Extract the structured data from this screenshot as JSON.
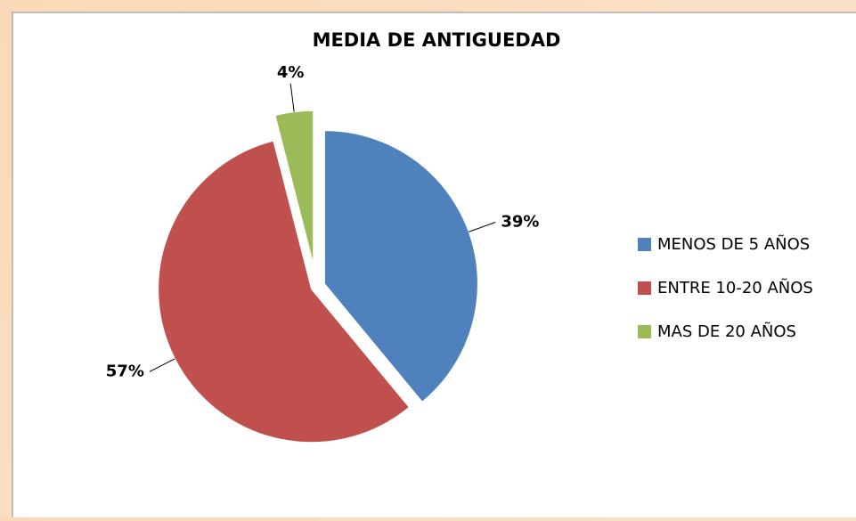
{
  "chart_data": {
    "type": "pie",
    "title": "MEDIA DE ANTIGUEDAD",
    "categories": [
      "MENOS DE 5 AÑOS",
      "ENTRE 10-20 AÑOS",
      "MAS DE 20 AÑOS"
    ],
    "values": [
      39,
      57,
      4
    ],
    "value_labels": [
      "39%",
      "57%",
      "4%"
    ],
    "colors": [
      "#4f81bd",
      "#c0504d",
      "#9bbb59"
    ],
    "legend": "right"
  }
}
